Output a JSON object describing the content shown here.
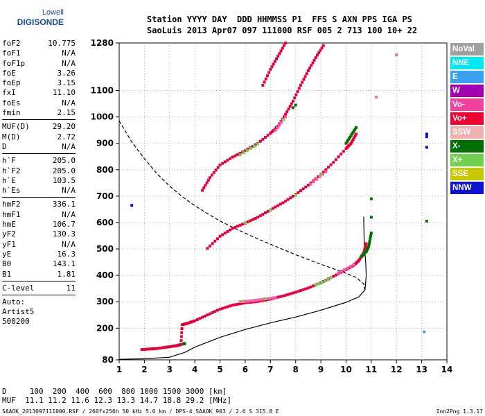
{
  "logo": {
    "line1": "Lowell",
    "line2": "DIGISONDE"
  },
  "header": {
    "line1": "Station YYYY DAY  DDD HHMMSS P1  FFS S AXN PPS IGA PS",
    "line2": "SaoLuis 2013 Apr07 097 111000 RSF 005 2 713 100 10+ 22"
  },
  "params_group1": [
    {
      "k": "foF2",
      "v": "10.775"
    },
    {
      "k": "foF1",
      "v": "N/A"
    },
    {
      "k": "foF1p",
      "v": "N/A"
    },
    {
      "k": "foE",
      "v": "3.26"
    },
    {
      "k": "foEp",
      "v": "3.15"
    },
    {
      "k": "fxI",
      "v": "11.10"
    },
    {
      "k": "foEs",
      "v": "N/A"
    },
    {
      "k": "fmin",
      "v": "2.15"
    }
  ],
  "params_group2": [
    {
      "k": "MUF(D)",
      "v": "29.20"
    },
    {
      "k": "M(D)",
      "v": "2.72"
    },
    {
      "k": "D",
      "v": "N/A"
    }
  ],
  "params_group3": [
    {
      "k": "h`F",
      "v": "205.0"
    },
    {
      "k": "h`F2",
      "v": "205.0"
    },
    {
      "k": "h`E",
      "v": "103.5"
    },
    {
      "k": "h`Es",
      "v": "N/A"
    }
  ],
  "params_group4": [
    {
      "k": "hmF2",
      "v": "336.1"
    },
    {
      "k": "hmF1",
      "v": "N/A"
    },
    {
      "k": "hmE",
      "v": "106.7"
    },
    {
      "k": "yF2",
      "v": "130.3"
    },
    {
      "k": "yF1",
      "v": "N/A"
    },
    {
      "k": "yE",
      "v": "16.3"
    },
    {
      "k": "B0",
      "v": "143.1"
    },
    {
      "k": "B1",
      "v": "1.81"
    }
  ],
  "params_group5": [
    {
      "k": "C-level",
      "v": "11"
    }
  ],
  "auto": [
    "Auto:",
    "Artist5",
    "500200"
  ],
  "legend": [
    {
      "label": "NoVal",
      "color": "#a0a0a0"
    },
    {
      "label": "NNE",
      "color": "#00e8f0"
    },
    {
      "label": "E",
      "color": "#3aa0f0"
    },
    {
      "label": "W",
      "color": "#a000b0"
    },
    {
      "label": "Vo-",
      "color": "#f040a0"
    },
    {
      "label": "Vo+",
      "color": "#f00030"
    },
    {
      "label": "SSW",
      "color": "#f0b0b0"
    },
    {
      "label": "X-",
      "color": "#007000"
    },
    {
      "label": "X+",
      "color": "#70d050"
    },
    {
      "label": "SSE",
      "color": "#c8c800"
    },
    {
      "label": "NNW",
      "color": "#1010d0"
    }
  ],
  "footer": {
    "line1": "D     100  200  400  600  800 1000 1500 3000 [km]",
    "line2": "MUF  11.1 11.2 11.6 12.3 13.3 14.7 18.8 29.2 [MHz]",
    "line3": "SAAOK_2013097111000.RSF / 260fx256h 50 kHz 5.0 km / DPS-4 SAAOK 903 / 2.6 S 315.8 E",
    "line4": "Ion2Png 1.3.17"
  },
  "chart_data": {
    "type": "scatter",
    "xlim": [
      1,
      14
    ],
    "ylim": [
      80,
      1280
    ],
    "xticks": [
      "1",
      "2",
      "3",
      "4",
      "5",
      "6",
      "7",
      "8",
      "9",
      "10",
      "11",
      "12",
      "13",
      "14"
    ],
    "yticks": [
      "80",
      "200",
      "300",
      "400",
      "500",
      "600",
      "700",
      "800",
      "900",
      "1000",
      "1100",
      "1280"
    ],
    "grid": true,
    "series": [
      {
        "color": "#e8003a",
        "points": [
          [
            1.9,
            119
          ],
          [
            2.2,
            121
          ],
          [
            2.5,
            123
          ],
          [
            2.8,
            127
          ],
          [
            3.1,
            131
          ],
          [
            3.3,
            134
          ],
          [
            3.45,
            138
          ],
          [
            3.5,
            213
          ],
          [
            3.7,
            218
          ],
          [
            4.0,
            228
          ],
          [
            4.5,
            250
          ],
          [
            5.0,
            272
          ],
          [
            5.5,
            287
          ],
          [
            6.0,
            296
          ],
          [
            6.5,
            301
          ],
          [
            7.0,
            310
          ],
          [
            7.5,
            322
          ],
          [
            8.0,
            336
          ],
          [
            8.5,
            352
          ],
          [
            9.0,
            372
          ],
          [
            9.5,
            396
          ],
          [
            10.0,
            422
          ],
          [
            10.3,
            438
          ],
          [
            10.5,
            455
          ],
          [
            10.7,
            485
          ],
          [
            10.8,
            520
          ],
          [
            4.5,
            502
          ],
          [
            5.0,
            548
          ],
          [
            5.5,
            578
          ],
          [
            6.0,
            598
          ],
          [
            6.5,
            620
          ],
          [
            7.0,
            648
          ],
          [
            7.5,
            675
          ],
          [
            8.0,
            706
          ],
          [
            8.5,
            742
          ],
          [
            9.0,
            782
          ],
          [
            9.5,
            828
          ],
          [
            10.0,
            880
          ],
          [
            10.2,
            900
          ],
          [
            10.4,
            935
          ],
          [
            4.3,
            722
          ],
          [
            4.6,
            770
          ],
          [
            5.0,
            818
          ],
          [
            5.5,
            848
          ],
          [
            6.0,
            872
          ],
          [
            6.5,
            900
          ],
          [
            7.0,
            938
          ],
          [
            7.3,
            965
          ],
          [
            7.6,
            1010
          ],
          [
            7.9,
            1060
          ],
          [
            8.2,
            1120
          ],
          [
            8.5,
            1175
          ],
          [
            8.8,
            1225
          ],
          [
            9.1,
            1270
          ],
          [
            6.7,
            1120
          ],
          [
            7.0,
            1180
          ],
          [
            7.3,
            1230
          ],
          [
            7.6,
            1280
          ]
        ]
      },
      {
        "color": "#007000",
        "points": [
          [
            3.55,
            140
          ],
          [
            3.6,
            142
          ],
          [
            10.6,
            470
          ],
          [
            10.8,
            490
          ],
          [
            10.9,
            510
          ],
          [
            11.0,
            560
          ],
          [
            11.0,
            620
          ],
          [
            11.0,
            690
          ],
          [
            10.0,
            900
          ],
          [
            10.2,
            930
          ],
          [
            10.4,
            960
          ],
          [
            8.0,
            1045
          ],
          [
            7.9,
            1035
          ],
          [
            13.2,
            605
          ]
        ]
      },
      {
        "color": "#f060b0",
        "points": [
          [
            5.8,
            300
          ],
          [
            6.2,
            303
          ],
          [
            6.6,
            308
          ],
          [
            7.2,
            316
          ],
          [
            9.7,
            410
          ],
          [
            10.3,
            440
          ],
          [
            8.6,
            745
          ],
          [
            9.2,
            792
          ],
          [
            7.2,
            948
          ],
          [
            7.6,
            1000
          ],
          [
            12.0,
            1235
          ],
          [
            11.2,
            1075
          ]
        ]
      },
      {
        "color": "#70d050",
        "points": [
          [
            5.9,
            302
          ],
          [
            6.8,
            312
          ],
          [
            8.8,
            362
          ],
          [
            9.4,
            390
          ],
          [
            6.0,
            600
          ],
          [
            7.0,
            646
          ],
          [
            8.0,
            703
          ],
          [
            9.0,
            780
          ],
          [
            5.8,
            856
          ],
          [
            6.5,
            898
          ],
          [
            7.5,
            990
          ]
        ]
      },
      {
        "color": "#1010d0",
        "points": [
          [
            1.5,
            665
          ],
          [
            13.2,
            885
          ],
          [
            13.2,
            925
          ],
          [
            13.2,
            935
          ]
        ]
      },
      {
        "color": "#3aa0f0",
        "points": [
          [
            13.1,
            186
          ]
        ]
      }
    ],
    "lines": [
      {
        "style": "solid",
        "color": "#000000",
        "points": [
          [
            1.0,
            82
          ],
          [
            2.0,
            84
          ],
          [
            3.0,
            90
          ],
          [
            3.6,
            108
          ],
          [
            4.0,
            128
          ],
          [
            5.0,
            165
          ],
          [
            6.0,
            195
          ],
          [
            7.0,
            220
          ],
          [
            8.0,
            242
          ],
          [
            9.0,
            268
          ],
          [
            10.0,
            298
          ],
          [
            10.5,
            318
          ],
          [
            10.75,
            345
          ],
          [
            10.8,
            400
          ],
          [
            10.78,
            450
          ],
          [
            10.72,
            520
          ],
          [
            10.7,
            622
          ]
        ]
      },
      {
        "style": "dashed",
        "color": "#000000",
        "points": [
          [
            1.0,
            985
          ],
          [
            1.5,
            905
          ],
          [
            2.0,
            842
          ],
          [
            2.5,
            785
          ],
          [
            3.0,
            738
          ],
          [
            3.5,
            698
          ],
          [
            4.0,
            664
          ],
          [
            4.5,
            634
          ],
          [
            5.0,
            606
          ],
          [
            5.5,
            582
          ],
          [
            6.0,
            560
          ],
          [
            6.5,
            538
          ],
          [
            7.0,
            518
          ],
          [
            7.5,
            498
          ],
          [
            8.0,
            478
          ],
          [
            8.5,
            460
          ],
          [
            9.0,
            442
          ],
          [
            9.5,
            425
          ],
          [
            10.0,
            408
          ],
          [
            10.4,
            392
          ],
          [
            10.7,
            368
          ],
          [
            10.75,
            345
          ]
        ]
      }
    ]
  }
}
